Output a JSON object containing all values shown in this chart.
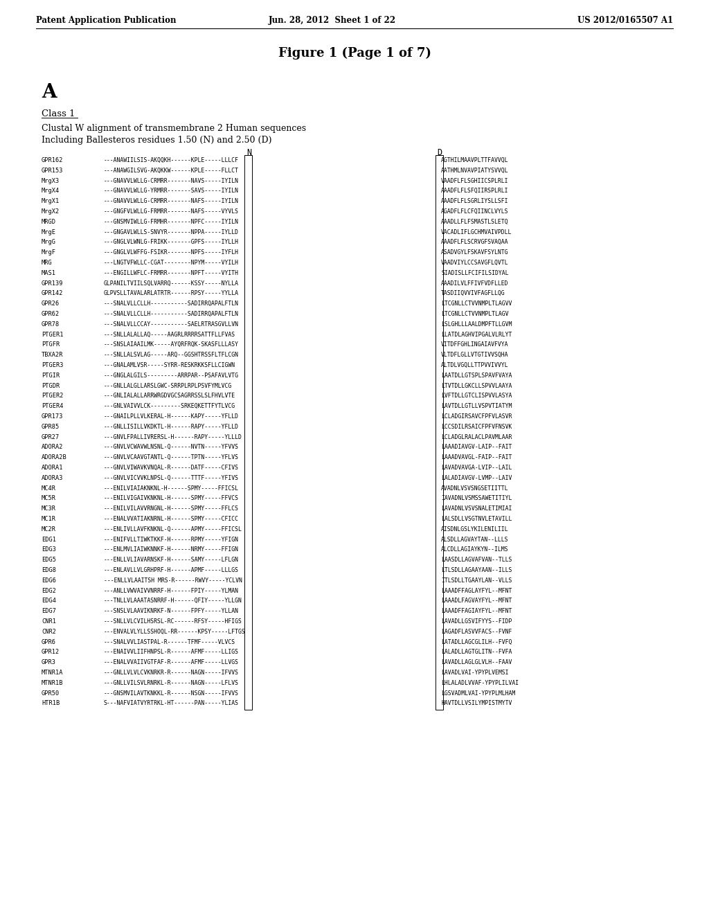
{
  "header_left": "Patent Application Publication",
  "header_center": "Jun. 28, 2012  Sheet 1 of 22",
  "header_right": "US 2012/0165507 A1",
  "figure_title": "Figure 1 (Page 1 of 7)",
  "section_label": "A",
  "class_label": "Class 1",
  "subtitle1": "Clustal W alignment of transmembrane 2 Human sequences",
  "subtitle2": "Including Ballesteros residues 1.50 (N) and 2.50 (D)",
  "col_n_label": "N",
  "col_d_label": "D",
  "sequences": [
    [
      "GPR162",
      "---ANAWIILSIS-AKQQKH------KPLE-----LLLCF",
      "AGTHILMAAVPLTTFAVVQL"
    ],
    [
      "GPR153",
      "---ANAWGILSVG-AKQKKW------KPLE-----FLLCT",
      "AATHMLNVAVPIATYSVVQL"
    ],
    [
      "MrgX3",
      "---GNAVVLWLLG-CRMRR-------NAVS-----IYILN",
      "VAADFLFLSGHIICSPLRLI"
    ],
    [
      "MrgX4",
      "---GNAVVLWLLG-YRMRR-------SAVS-----IYILN",
      "AAADFLFLSFQIIRSPLRLI"
    ],
    [
      "MrgX1",
      "---GNAVVLWLLG-CRMRR-------NAFS-----IYILN",
      "AAADFLFLSGRLIYSLLSFI"
    ],
    [
      "MrgX2",
      "---GNGFVLWLLG-FRMRR-------NAFS-----VYVLS",
      "AGADFLFLCFQIINCLVYLS"
    ],
    [
      "MRGD",
      "---GNSMVIWLLG-FRMHR-------NPFC-----IYILN",
      "AAADLLFLFSMASTLSLETQ"
    ],
    [
      "MrgE",
      "---GNGAVLWLLS-SNVYR-------NPPA-----IYLLD",
      "VACADLIFLGCHMVAIVPDLL"
    ],
    [
      "MrgG",
      "---GNGLVLWNLG-FRIKK-------GPFS-----IYLLH",
      "AAADFLFLSCRVGFSVAQAA"
    ],
    [
      "MrgF",
      "---GNGLVLWFFG-FSIKR-------NPFS-----IYFLH",
      "ASADVGYLFSKAVFSYLNTG"
    ],
    [
      "MRG",
      "---LNGTVFWLLC-CGAT--------NPYM-----VYILH",
      "VAADVIYLCCSAVGFLQVTL"
    ],
    [
      "MAS1",
      "---ENGILLWFLC-FRMRR-------NPFT-----VYITH",
      "SIADISLLFCIFILSIDYAL"
    ],
    [
      "GPR139",
      "GLPANILTVIILSQLVARRQ------KSSY-----NYLLA",
      "AAADILVLFFIVFVDFLLED"
    ],
    [
      "GPR142",
      "GLPVSLLTAVALARLATRTR------RPSY-----YYLLA",
      "TASDIIQVVIVFAGFLLQG"
    ],
    [
      "GPR26",
      "---SNALVLLCLLH-----------SADIRRQAPALFTLN",
      "LTCGNLLCTVVNMPLTLAGVV"
    ],
    [
      "GPR62",
      "---SNALVLLCLLH-----------SADIRRQAPALFTLN",
      "LTCGNLLCTVVNMPLTLAGV"
    ],
    [
      "GPR78",
      "---SNALVLLCCAY-----------SAELRTRASGVLLVN",
      "LSLGHLLLAALDMPFTLLGVM"
    ],
    [
      "PTGER1",
      "---SNLLALALLAQ-----AAGRLRRRRSATTFLLFVAS",
      "LLATDLAGHVIPGALVLRLYT"
    ],
    [
      "PTGFR",
      "---SNSLAIAAILMK-----AYQRFRQK-SKASFLLLASY",
      "VITDFFGHLINGAIAVFVYA"
    ],
    [
      "TBXA2R",
      "---SNLLALSVLAG-----ARQ--GGSHTRSSFLTFLCGN",
      "VLTDFLGLLVTGTIVVSQHA"
    ],
    [
      "PTGER3",
      "---GNALAMLVSR-----SYRR-RESKRKKSFLLCIGWN",
      "ALTDLVGQLLTTPVVIVVYL"
    ],
    [
      "PTGIR",
      "---GNGLALGILS---------ARRPAR--PSAFAVLVTG",
      "LAATDLLGTSPLSPAVFVAYA"
    ],
    [
      "PTGDR",
      "---GNLLALGLLARSLGWC-SRRPLRPLPSVFYMLVCG",
      "LTVTDLLGKCLLSPVVLAAYA"
    ],
    [
      "PTGER2",
      "---GNLIALALLARRWRGDVGCSAGRRSSLSLFHVLVTE",
      "LVFTDLLGTCLISPVVLASYA"
    ],
    [
      "PTGER4",
      "---GNLVAIVVLCK---------SRKEQKETTFYTLVCG",
      "LAVTDLLGTLLVSPVTIATYM"
    ],
    [
      "GPR173",
      "---GNAILPLLVLKERAL-H------KAPY-----YFLLD",
      "LCLADGIRSAVCFPFVLASVR"
    ],
    [
      "GPR85",
      "---GNLLISILLVKDKTL-H------RAPY-----YFLLD",
      "LCCSDILRSAICFPFVFNSVK"
    ],
    [
      "GPR27",
      "---GNVLFPALLIVRERSL-H------RAPY-----YLLLD",
      "LCLADGLRALACLPAVMLAAR"
    ],
    [
      "ADORA2",
      "---GNVLVCWAVWLNSNL-Q------NVTN-----YFVVS",
      "LAAADIAVGV-LAIP--FAIT"
    ],
    [
      "ADORA2B",
      "---GNVLVCAAVGTANTL-Q------TPTN-----YFLVS",
      "LAAADVAVGL-FAIP--FAIT"
    ],
    [
      "ADORA1",
      "---GNVLVIWAVKVNQAL-R------DATF-----CFIVS",
      "LAVADVAVGA-LVIP--LAIL"
    ],
    [
      "ADORA3",
      "---GNVLVICVVKLNPSL-Q------TTTF-----YFIVS",
      "LALADIAVGV-LVMP--LAIV"
    ],
    [
      "MC4R",
      "---ENILVIAIAKNKNL-H------SPMY-----FFICSL",
      "AVADNLVSVSNGSETIITTL"
    ],
    [
      "MC5R",
      "---ENILVIGAIVKNKNL-H------SPMY-----FFVCS",
      "IAVADNLVSMSSAWETITIYL"
    ],
    [
      "MC3R",
      "---ENILVILAVVRNGNL-H------SPMY-----FFLCS",
      "LAVADNLVSVSNALETIMIAI"
    ],
    [
      "MC1R",
      "---ENALVVATIAKNRNL-H------SPMY-----CFICC",
      "LALSDLLVSGTNVLETAVILL"
    ],
    [
      "MC2R",
      "---ENLIVLLAVFKNKNL-Q------APMY-----FFICSL",
      "AISDNLGSLYKILENILIIL"
    ],
    [
      "EDG1",
      "---ENIFVLLTIWKTKKF-H------RPMY-----YFIGN",
      "ALSDLLAGVAYTAN--LLLS"
    ],
    [
      "EDG3",
      "---ENLMVLIAIWKNNKF-H------NRMY-----FFIGN",
      "ALCDLLAGIAYKYN--ILMS"
    ],
    [
      "EDG5",
      "---ENLLVLIAVARNSKF-H------SAMY-----LFLGN",
      "LAASDLLAGVAFVAN--TLLS"
    ],
    [
      "EDG8",
      "---ENLAVLLVLGRHPRF-H------APMF-----LLLGS",
      "LTLSDLLAGAAYAAN--ILLS"
    ],
    [
      "EDG6",
      "---ENLLVLAAITSH MRS-R------RWVY-----YCLVN",
      "ITLSDLLTGAAYLAN--VLLS"
    ],
    [
      "EDG2",
      "---ANLLVWVAIVVNRRF-H------FPIY-----YLMAN",
      "LAAADFFAGLAYFYL--MFNT"
    ],
    [
      "EDG4",
      "---TNLLVLAAATASNRRF-H------QFIY-----YLLGN",
      "LAAADLFAGVAYFYL--MFNT"
    ],
    [
      "EDG7",
      "---SNSLVLAAVIKNRKF-N------FPFY-----YLLAN",
      "LAAADFFAGIAYFYL--MFNT"
    ],
    [
      "CNR1",
      "---SNLLVLCVILHSRSL-RC------RFSY-----HFIGS",
      "LAVADLLGSVIFYYS--FIDP"
    ],
    [
      "CNR2",
      "---ENVALVLYLLSSHOQL-RR------KPSY-----LFTGS",
      "LAGADFLASVVFACS--FVNF"
    ],
    [
      "GPR6",
      "---SNALVVLIASTPAL-R------TFMF-----VLVCS",
      "LATADLLAGCGLILH--FVFQ"
    ],
    [
      "GPR12",
      "---ENAIVVLIIFHNPSL-R------AFMF-----LLIGS",
      "LALADLLAGTGLITN--FVFA"
    ],
    [
      "GPR3",
      "---ENALVVAIIVGTFAF-R------AFMF-----LLVGS",
      "LAVADLLAGLGLVLH--FAAV"
    ],
    [
      "MTNR1A",
      "---GNLLVLVLCVKNRKR-R------NAGN-----IFVVS",
      "LAVADLVAI-YPYPLVEMSI"
    ],
    [
      "MTNR1B",
      "---GNLLVILSVLRNRKL-R------NAGN-----LFLVS",
      "LHLALADLVVAF-YPYPLILVAI"
    ],
    [
      "GPR50",
      "---GNSMVILAVTKNKKL-R------NSGN-----IFVVS",
      "LGSVADMLVAI-YPYPLMLHAM"
    ],
    [
      "HTR1B",
      "S---NAFVIATVYRTRKL-HT------PAN-----YLIAS",
      "HAVTDLLVSILYMPISTMYTV"
    ]
  ],
  "background_color": "#ffffff",
  "text_color": "#000000"
}
